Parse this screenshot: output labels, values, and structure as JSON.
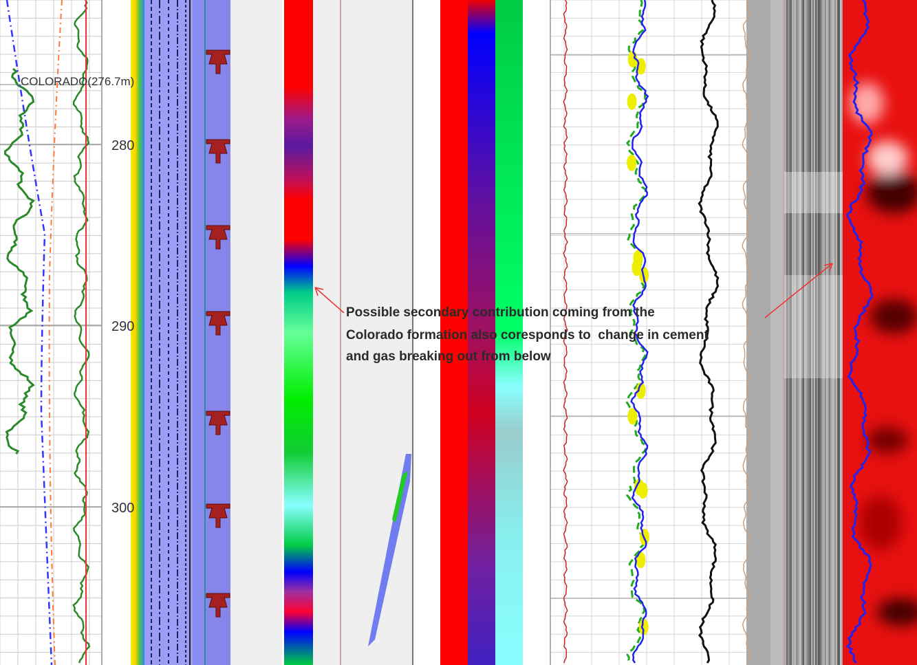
{
  "formation_label": "COLORADO(276.7m)",
  "depth_labels": [
    "280",
    "290",
    "300"
  ],
  "annotation": {
    "lines": [
      "Possible secondary contribution coming from the",
      "Colorado formation also coresponds to  change in cement",
      "and gas breaking out from below"
    ]
  }
}
